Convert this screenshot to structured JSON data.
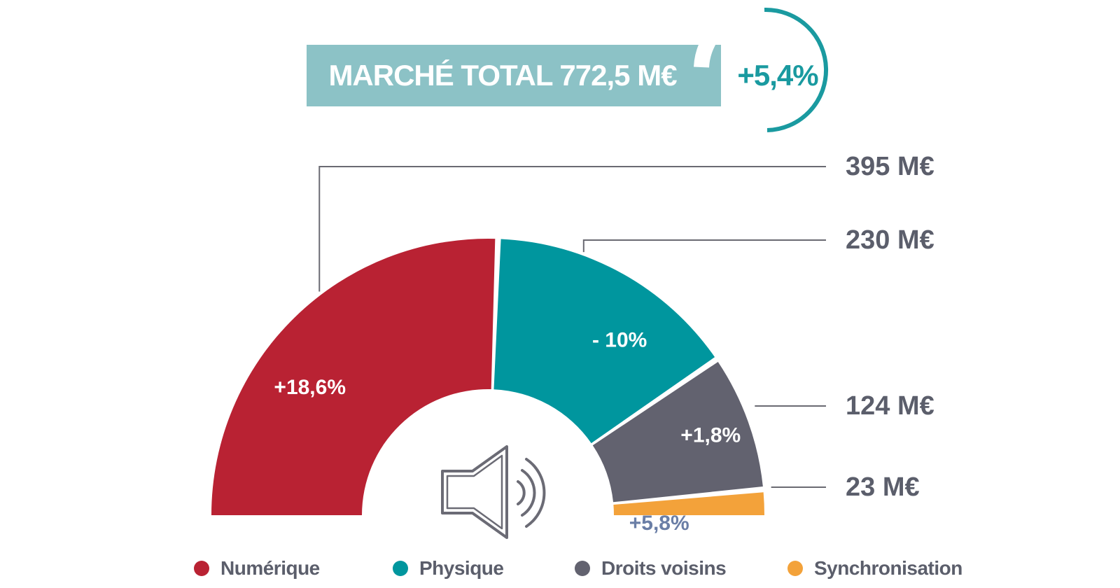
{
  "header": {
    "total_label": "MARCHÉ TOTAL 772,5 M€",
    "total_change": "+5,4%"
  },
  "chart_data": {
    "type": "pie",
    "variant": "half-donut",
    "series": [
      {
        "name": "Numérique",
        "value": 395,
        "value_label": "395 M€",
        "change_label": "+18,6%",
        "color": "#b92233"
      },
      {
        "name": "Physique",
        "value": 230,
        "value_label": "230 M€",
        "change_label": "- 10%",
        "color": "#00969e"
      },
      {
        "name": "Droits voisins",
        "value": 124,
        "value_label": "124 M€",
        "change_label": "+1,8%",
        "color": "#62626f"
      },
      {
        "name": "Synchronisation",
        "value": 23,
        "value_label": "23 M€",
        "change_label": "+5,8%",
        "color": "#f3a23a"
      }
    ],
    "unit": "M€",
    "total": 772.5,
    "legend_position": "bottom",
    "center_icon": "speaker-icon"
  }
}
